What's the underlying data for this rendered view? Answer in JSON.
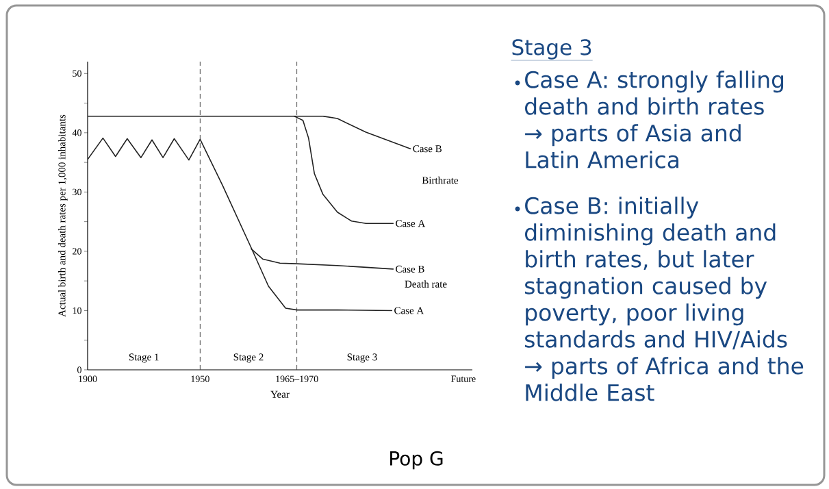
{
  "chart_data": [
    {
      "type": "line",
      "xlabel": "Year",
      "ylabel": "Actual birth and death rates per 1,000 inhabitants",
      "xlim": [
        1900,
        2071
      ],
      "ylim": [
        0,
        52
      ],
      "xticks": [
        1900,
        1950,
        {
          "value": 1993,
          "label": "1965–1970"
        },
        {
          "value": 2067,
          "label": "Future"
        }
      ],
      "yticks": [
        0,
        {
          "value": 5,
          "label": null
        },
        10,
        {
          "value": 15,
          "label": null
        },
        20,
        {
          "value": 25,
          "label": null
        },
        30,
        {
          "value": 35,
          "label": null
        },
        40,
        {
          "value": 45,
          "label": null
        },
        50
      ],
      "grid": false,
      "marker": "none",
      "line_style": "solid",
      "series": [
        {
          "name": "Case B",
          "color": "#222222",
          "x": [
            1900,
            1991.8,
            2004.6,
            2011,
            2023.7,
            2043.5
          ],
          "values": [
            42.8,
            42.8,
            42.8,
            42.4,
            40.1,
            37.3
          ]
        },
        {
          "name": "Case A",
          "color": "#222222",
          "x": [
            1991.8,
            1995.7,
            1998.2,
            2000.8,
            2004.6,
            2011,
            2017.3,
            2023.7,
            2035.8
          ],
          "values": [
            42.8,
            42.1,
            39.1,
            33.1,
            29.6,
            26.6,
            25.1,
            24.7,
            24.7
          ]
        },
        {
          "name": "Case A",
          "color": "#222222",
          "x": [
            1900,
            1906.8,
            1912.4,
            1917.6,
            1923.7,
            1928.6,
            1933.5,
            1938.5,
            1945,
            1950,
            1960,
            1972.7,
            1980.4,
            1988,
            1993.1,
            2011,
            2035.2
          ],
          "values": [
            35.5,
            39.1,
            36,
            39,
            35.8,
            38.8,
            35.8,
            39,
            35.4,
            38.9,
            31.1,
            20.6,
            14.1,
            10.4,
            10.1,
            10.1,
            10
          ]
        },
        {
          "name": "Case B",
          "color": "#222222",
          "x": [
            1972.7,
            1977.8,
            1985.5,
            1993,
            2011,
            2035.8
          ],
          "values": [
            20.4,
            18.7,
            18,
            17.9,
            17.6,
            17
          ]
        }
      ],
      "ref_lines": [
        {
          "axis": "x",
          "value": 1950,
          "line_style": "dashed",
          "color": "#444444"
        },
        {
          "axis": "x",
          "value": 1993,
          "line_style": "dashed",
          "color": "#444444"
        }
      ],
      "annotations": [
        "Stage 1",
        "Stage 2",
        "Stage 3",
        "Birthrate",
        "Death rate"
      ]
    },
    {
      "type": "other",
      "title": "Stage 3",
      "annotations": [
        "Case A: strongly falling death and birth rates",
        "→ parts of Asia and Latin America",
        "Case B: initially diminishing death and birth rates, but later stagnation caused by poverty, poor living standards and HIV/Aids",
        "→ parts of Africa and the Middle East",
        "Pop G"
      ]
    }
  ]
}
